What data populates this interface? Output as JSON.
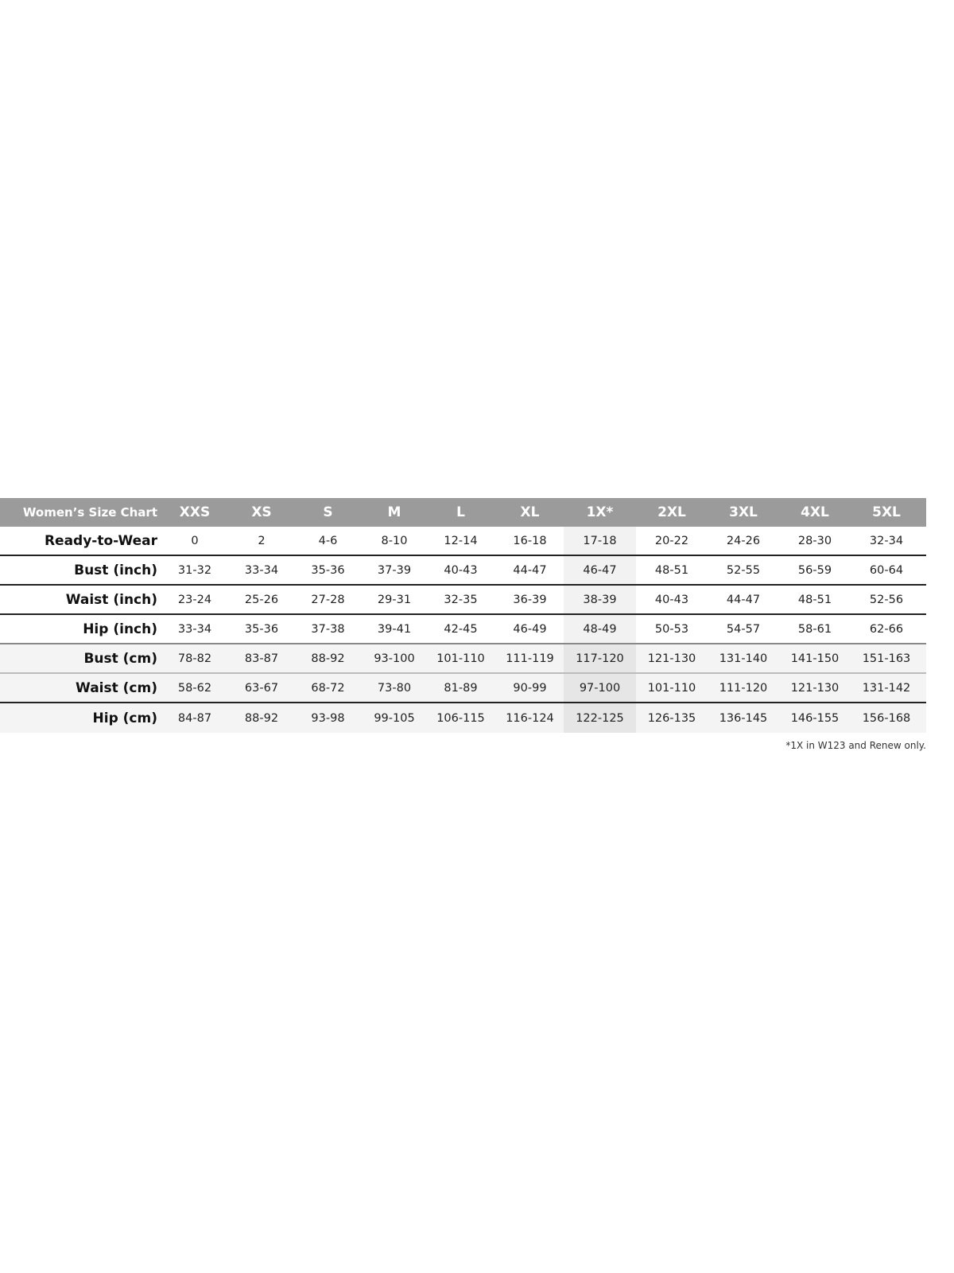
{
  "title": "Women’s Size Chart",
  "sizes": [
    "XXS",
    "XS",
    "S",
    "M",
    "L",
    "XL",
    "1X*",
    "2XL",
    "3XL",
    "4XL",
    "5XL"
  ],
  "highlight_column": "1X*",
  "rows": [
    {
      "label": "Ready-to-Wear",
      "values": [
        "0",
        "2",
        "4-6",
        "8-10",
        "12-14",
        "16-18",
        "17-18",
        "20-22",
        "24-26",
        "28-30",
        "32-34"
      ]
    },
    {
      "label": "Bust (inch)",
      "values": [
        "31-32",
        "33-34",
        "35-36",
        "37-39",
        "40-43",
        "44-47",
        "46-47",
        "48-51",
        "52-55",
        "56-59",
        "60-64"
      ]
    },
    {
      "label": "Waist (inch)",
      "values": [
        "23-24",
        "25-26",
        "27-28",
        "29-31",
        "32-35",
        "36-39",
        "38-39",
        "40-43",
        "44-47",
        "48-51",
        "52-56"
      ]
    },
    {
      "label": "Hip (inch)",
      "values": [
        "33-34",
        "35-36",
        "37-38",
        "39-41",
        "42-45",
        "46-49",
        "48-49",
        "50-53",
        "54-57",
        "58-61",
        "62-66"
      ]
    },
    {
      "label": "Bust (cm)",
      "values": [
        "78-82",
        "83-87",
        "88-92",
        "93-100",
        "101-110",
        "111-119",
        "117-120",
        "121-130",
        "131-140",
        "141-150",
        "151-163"
      ]
    },
    {
      "label": "Waist (cm)",
      "values": [
        "58-62",
        "63-67",
        "68-72",
        "73-80",
        "81-89",
        "90-99",
        "97-100",
        "101-110",
        "111-120",
        "121-130",
        "131-142"
      ]
    },
    {
      "label": "Hip (cm)",
      "values": [
        "84-87",
        "88-92",
        "93-98",
        "99-105",
        "106-115",
        "116-124",
        "122-125",
        "126-135",
        "136-145",
        "146-155",
        "156-168"
      ]
    }
  ],
  "footnote": "*1X in W123 and Renew only.",
  "colors": {
    "header_bg": "#9b9b9b",
    "header_text": "#ffffff",
    "highlight": "#f2f2f2"
  }
}
